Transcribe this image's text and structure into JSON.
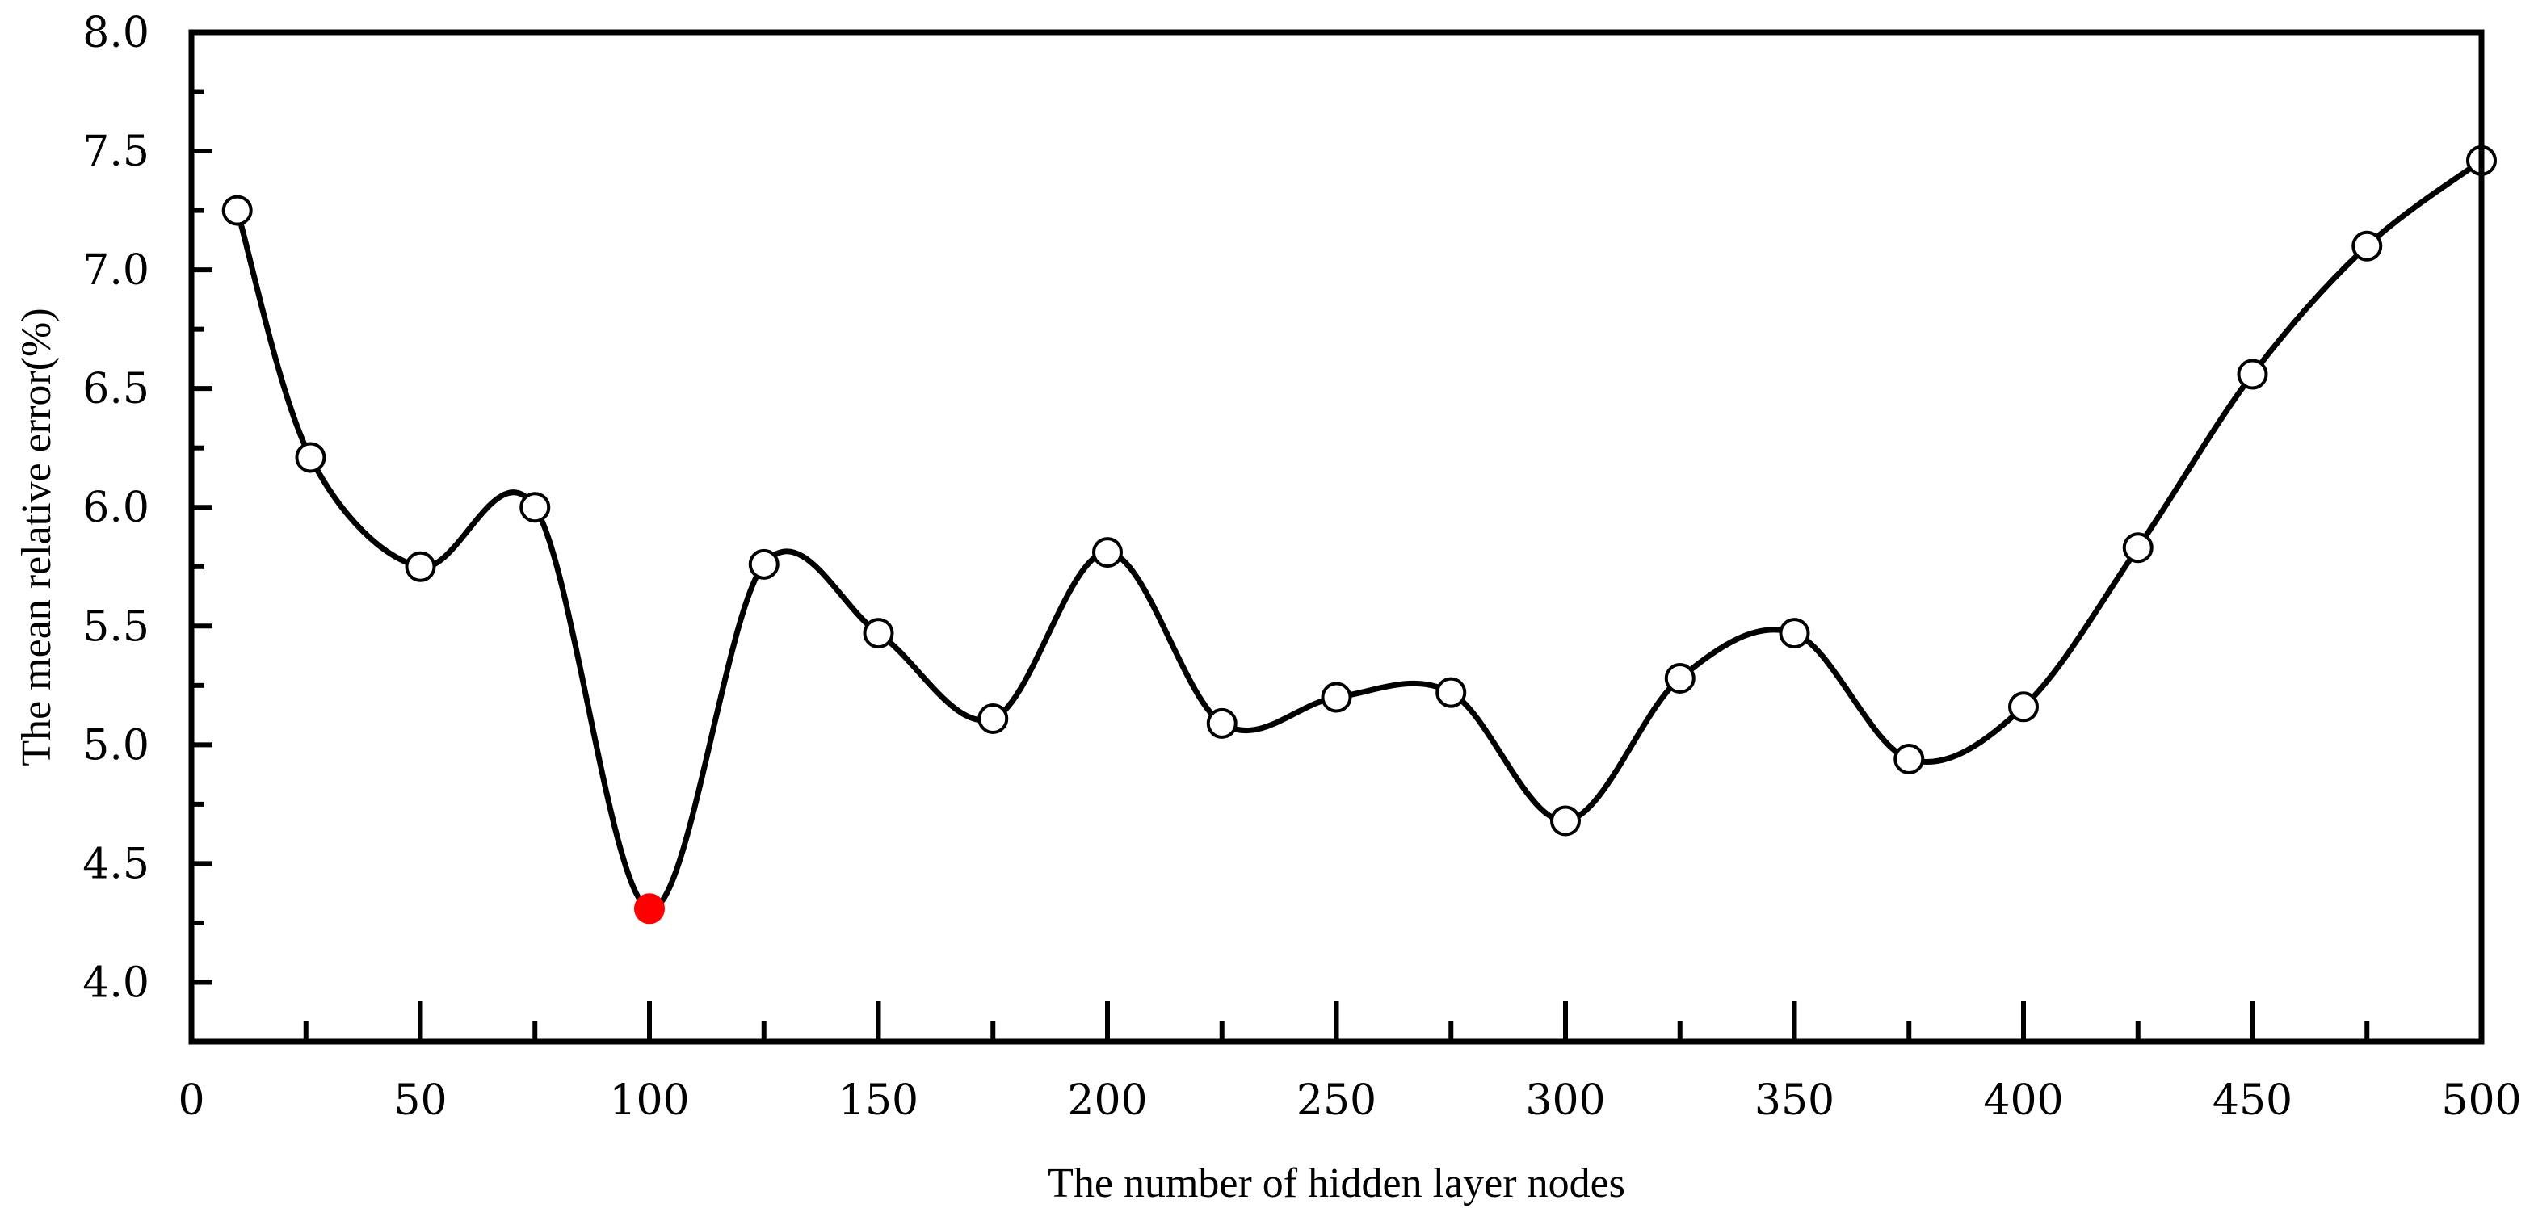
{
  "chart_data": {
    "type": "line",
    "title": "",
    "xlabel": "The number of hidden layer nodes",
    "ylabel": "The mean relative error(%)",
    "xlim": [
      0,
      500
    ],
    "ylim": [
      3.75,
      8.0
    ],
    "x_ticks": [
      0,
      50,
      100,
      150,
      200,
      250,
      300,
      350,
      400,
      450,
      500
    ],
    "x_tick_labels": [
      "0",
      "50",
      "100",
      "150",
      "200",
      "250",
      "300",
      "350",
      "400",
      "450",
      "500"
    ],
    "x_minor_ticks": [
      25,
      75,
      125,
      175,
      225,
      275,
      325,
      375,
      425,
      475
    ],
    "y_ticks": [
      4.0,
      4.5,
      5.0,
      5.5,
      6.0,
      6.5,
      7.0,
      7.5,
      8.0
    ],
    "y_tick_labels": [
      "4.0",
      "4.5",
      "5.0",
      "5.5",
      "6.0",
      "6.5",
      "7.0",
      "7.5",
      "8.0"
    ],
    "y_minor_ticks": [
      4.25,
      4.75,
      5.25,
      5.75,
      6.25,
      6.75,
      7.25,
      7.75
    ],
    "grid": false,
    "curve": "smooth spline through points",
    "series": [
      {
        "x": [
          10,
          26,
          50,
          75,
          100,
          125,
          150,
          175,
          200,
          225,
          250,
          275,
          300,
          325,
          350,
          375,
          400,
          425,
          450,
          475,
          500
        ],
        "y": [
          7.25,
          6.21,
          5.75,
          6.0,
          4.31,
          5.76,
          5.47,
          5.11,
          5.81,
          5.09,
          5.2,
          5.22,
          4.68,
          5.28,
          5.47,
          4.94,
          5.16,
          5.83,
          6.56,
          7.1,
          7.46
        ],
        "highlight_index": 4
      }
    ],
    "colors": {
      "line": "#000000",
      "marker_fill": "#ffffff",
      "marker_edge": "#000000",
      "highlight": "#ff0000"
    }
  }
}
